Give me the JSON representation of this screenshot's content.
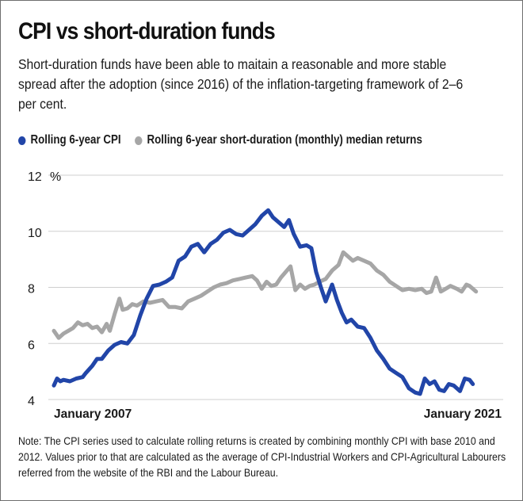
{
  "title": "CPI vs short-duration funds",
  "subtitle": "Short-duration funds have been able to maitain a reasonable and more stable spread after the adoption (since 2016) of the inflation-targeting framework of 2–6 per cent.",
  "note": "Note: The CPI series used to calculate rolling returns is created by combining monthly CPI with base 2010 and 2012. Values prior to that are calculated as the average of CPI-Industrial Workers and CPI-Agricultural Labourers referred from the website of the RBI and the Labour Bureau.",
  "chart_data": {
    "type": "line",
    "ylabel": "%",
    "ylim": [
      4,
      12
    ],
    "yticks": [
      4,
      6,
      8,
      10,
      12
    ],
    "xlim": [
      2007.0,
      2021.0
    ],
    "x_tick_labels": [
      {
        "x": 2007.0,
        "label": "January 2007"
      },
      {
        "x": 2021.0,
        "label": "January 2021"
      }
    ],
    "grid": true,
    "legend": "top",
    "colors": {
      "cpi": "#2145a8",
      "returns": "#a6a6a6",
      "grid": "#cfcfcf"
    },
    "series": [
      {
        "name": "Rolling 6-year CPI",
        "color": "#2145a8",
        "points": [
          [
            2007.0,
            4.5
          ],
          [
            2007.1,
            4.75
          ],
          [
            2007.2,
            4.65
          ],
          [
            2007.3,
            4.7
          ],
          [
            2007.5,
            4.65
          ],
          [
            2007.7,
            4.75
          ],
          [
            2007.9,
            4.8
          ],
          [
            2008.0,
            4.95
          ],
          [
            2008.2,
            5.2
          ],
          [
            2008.35,
            5.45
          ],
          [
            2008.5,
            5.45
          ],
          [
            2008.7,
            5.75
          ],
          [
            2008.9,
            5.95
          ],
          [
            2009.1,
            6.05
          ],
          [
            2009.3,
            6.0
          ],
          [
            2009.5,
            6.3
          ],
          [
            2009.7,
            7.0
          ],
          [
            2009.9,
            7.6
          ],
          [
            2010.1,
            8.05
          ],
          [
            2010.3,
            8.1
          ],
          [
            2010.5,
            8.2
          ],
          [
            2010.7,
            8.35
          ],
          [
            2010.9,
            8.95
          ],
          [
            2011.1,
            9.1
          ],
          [
            2011.3,
            9.45
          ],
          [
            2011.5,
            9.55
          ],
          [
            2011.7,
            9.25
          ],
          [
            2011.9,
            9.55
          ],
          [
            2012.1,
            9.7
          ],
          [
            2012.3,
            9.95
          ],
          [
            2012.5,
            10.05
          ],
          [
            2012.7,
            9.9
          ],
          [
            2012.9,
            9.85
          ],
          [
            2013.1,
            10.05
          ],
          [
            2013.3,
            10.25
          ],
          [
            2013.5,
            10.55
          ],
          [
            2013.7,
            10.75
          ],
          [
            2013.85,
            10.5
          ],
          [
            2014.0,
            10.35
          ],
          [
            2014.2,
            10.15
          ],
          [
            2014.35,
            10.4
          ],
          [
            2014.5,
            9.9
          ],
          [
            2014.7,
            9.45
          ],
          [
            2014.9,
            9.5
          ],
          [
            2015.05,
            9.4
          ],
          [
            2015.2,
            8.55
          ],
          [
            2015.35,
            8.0
          ],
          [
            2015.5,
            7.5
          ],
          [
            2015.7,
            8.1
          ],
          [
            2015.85,
            7.55
          ],
          [
            2016.0,
            7.1
          ],
          [
            2016.15,
            6.75
          ],
          [
            2016.3,
            6.85
          ],
          [
            2016.5,
            6.6
          ],
          [
            2016.7,
            6.55
          ],
          [
            2016.9,
            6.2
          ],
          [
            2017.1,
            5.75
          ],
          [
            2017.3,
            5.45
          ],
          [
            2017.5,
            5.1
          ],
          [
            2017.7,
            4.95
          ],
          [
            2017.9,
            4.8
          ],
          [
            2018.1,
            4.4
          ],
          [
            2018.3,
            4.25
          ],
          [
            2018.45,
            4.2
          ],
          [
            2018.6,
            4.75
          ],
          [
            2018.75,
            4.55
          ],
          [
            2018.9,
            4.65
          ],
          [
            2019.05,
            4.35
          ],
          [
            2019.2,
            4.3
          ],
          [
            2019.35,
            4.55
          ],
          [
            2019.5,
            4.5
          ],
          [
            2019.7,
            4.3
          ],
          [
            2019.85,
            4.75
          ],
          [
            2020.0,
            4.7
          ],
          [
            2020.1,
            4.55
          ]
        ]
      },
      {
        "name": "Rolling 6-year short-duration (monthly) median returns",
        "color": "#a6a6a6",
        "points": [
          [
            2007.0,
            6.45
          ],
          [
            2007.15,
            6.2
          ],
          [
            2007.3,
            6.35
          ],
          [
            2007.45,
            6.45
          ],
          [
            2007.6,
            6.55
          ],
          [
            2007.75,
            6.75
          ],
          [
            2007.9,
            6.65
          ],
          [
            2008.05,
            6.7
          ],
          [
            2008.2,
            6.55
          ],
          [
            2008.35,
            6.6
          ],
          [
            2008.5,
            6.4
          ],
          [
            2008.65,
            6.7
          ],
          [
            2008.75,
            6.45
          ],
          [
            2008.9,
            7.05
          ],
          [
            2009.05,
            7.6
          ],
          [
            2009.15,
            7.2
          ],
          [
            2009.3,
            7.25
          ],
          [
            2009.45,
            7.4
          ],
          [
            2009.6,
            7.35
          ],
          [
            2009.8,
            7.5
          ],
          [
            2010.0,
            7.45
          ],
          [
            2010.2,
            7.5
          ],
          [
            2010.4,
            7.55
          ],
          [
            2010.6,
            7.3
          ],
          [
            2010.8,
            7.3
          ],
          [
            2011.0,
            7.25
          ],
          [
            2011.2,
            7.5
          ],
          [
            2011.4,
            7.6
          ],
          [
            2011.6,
            7.7
          ],
          [
            2011.8,
            7.85
          ],
          [
            2012.0,
            8.0
          ],
          [
            2012.2,
            8.1
          ],
          [
            2012.4,
            8.15
          ],
          [
            2012.6,
            8.25
          ],
          [
            2012.8,
            8.3
          ],
          [
            2013.0,
            8.35
          ],
          [
            2013.2,
            8.4
          ],
          [
            2013.35,
            8.25
          ],
          [
            2013.5,
            7.95
          ],
          [
            2013.65,
            8.2
          ],
          [
            2013.8,
            8.05
          ],
          [
            2013.95,
            8.1
          ],
          [
            2014.1,
            8.35
          ],
          [
            2014.25,
            8.55
          ],
          [
            2014.4,
            8.75
          ],
          [
            2014.55,
            7.9
          ],
          [
            2014.7,
            8.1
          ],
          [
            2014.85,
            7.95
          ],
          [
            2015.0,
            8.05
          ],
          [
            2015.15,
            8.1
          ],
          [
            2015.3,
            8.2
          ],
          [
            2015.5,
            8.3
          ],
          [
            2015.7,
            8.6
          ],
          [
            2015.9,
            8.8
          ],
          [
            2016.05,
            9.25
          ],
          [
            2016.2,
            9.1
          ],
          [
            2016.35,
            8.95
          ],
          [
            2016.5,
            9.05
          ],
          [
            2016.7,
            8.95
          ],
          [
            2016.9,
            8.85
          ],
          [
            2017.1,
            8.6
          ],
          [
            2017.3,
            8.45
          ],
          [
            2017.5,
            8.2
          ],
          [
            2017.7,
            8.05
          ],
          [
            2017.9,
            7.9
          ],
          [
            2018.1,
            7.95
          ],
          [
            2018.3,
            7.9
          ],
          [
            2018.5,
            7.95
          ],
          [
            2018.65,
            7.8
          ],
          [
            2018.8,
            7.85
          ],
          [
            2018.95,
            8.35
          ],
          [
            2019.1,
            7.85
          ],
          [
            2019.25,
            7.95
          ],
          [
            2019.4,
            8.05
          ],
          [
            2019.6,
            7.95
          ],
          [
            2019.75,
            7.85
          ],
          [
            2019.9,
            8.1
          ],
          [
            2020.0,
            8.05
          ],
          [
            2020.1,
            7.95
          ],
          [
            2020.2,
            7.85
          ]
        ]
      }
    ]
  }
}
